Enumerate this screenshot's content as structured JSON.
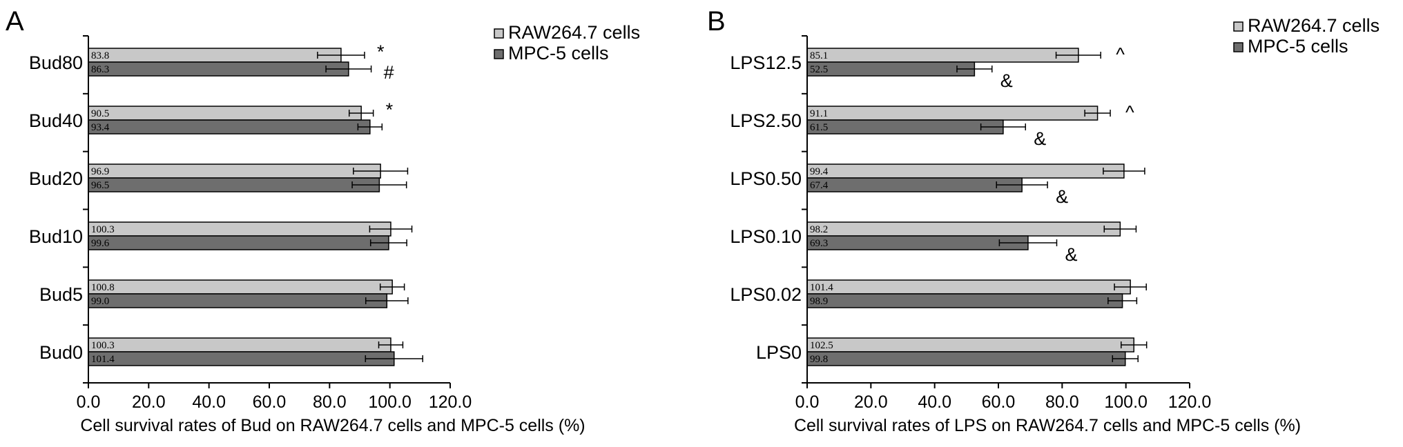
{
  "colors": {
    "raw": "#c8c8c8",
    "mpc": "#6e6e6e"
  },
  "chart_data": [
    {
      "type": "bar",
      "orientation": "horizontal",
      "panel_label": "A",
      "xlabel": "Cell survival rates of Bud on RAW264.7 cells and MPC-5 cells (%)",
      "ylabel": "",
      "xlim": [
        0,
        120
      ],
      "x_ticks": [
        "0.0",
        "20.0",
        "40.0",
        "60.0",
        "80.0",
        "100.0",
        "120.0"
      ],
      "legend_position": "top-right",
      "categories": [
        "Bud80",
        "Bud40",
        "Bud20",
        "Bud10",
        "Bud5",
        "Bud0"
      ],
      "series": [
        {
          "name": "RAW264.7 cells",
          "values": [
            83.8,
            90.5,
            96.9,
            100.3,
            100.8,
            100.3
          ],
          "value_labels": [
            "83.8",
            "90.5",
            "96.9",
            "100.3",
            "100.8",
            "100.3"
          ],
          "errors": [
            7.8,
            4.0,
            9.0,
            7.0,
            4.0,
            4.0
          ],
          "markers": [
            "*",
            "*",
            "",
            "",
            "",
            ""
          ]
        },
        {
          "name": "MPC-5 cells",
          "values": [
            86.3,
            93.4,
            96.5,
            99.6,
            99.0,
            101.4
          ],
          "value_labels": [
            "86.3",
            "93.4",
            "96.5",
            "99.6",
            "99.0",
            "101.4"
          ],
          "errors": [
            7.5,
            4.0,
            9.0,
            6.0,
            7.0,
            9.5
          ],
          "markers": [
            "#",
            "",
            "",
            "",
            "",
            ""
          ]
        }
      ]
    },
    {
      "type": "bar",
      "orientation": "horizontal",
      "panel_label": "B",
      "xlabel": "Cell survival rates of LPS on RAW264.7 cells and MPC-5 cells (%)",
      "ylabel": "",
      "xlim": [
        0,
        120
      ],
      "x_ticks": [
        "0.0",
        "20.0",
        "40.0",
        "60.0",
        "80.0",
        "100.0",
        "120.0"
      ],
      "legend_position": "top-right",
      "categories": [
        "LPS12.5",
        "LPS2.50",
        "LPS0.50",
        "LPS0.10",
        "LPS0.02",
        "LPS0"
      ],
      "series": [
        {
          "name": "RAW264.7 cells",
          "values": [
            85.1,
            91.1,
            99.4,
            98.2,
            101.4,
            102.5
          ],
          "value_labels": [
            "85.1",
            "91.1",
            "99.4",
            "98.2",
            "101.4",
            "102.5"
          ],
          "errors": [
            7.0,
            4.0,
            6.5,
            5.0,
            5.0,
            4.0
          ],
          "markers": [
            "^",
            "^",
            "",
            "",
            "",
            ""
          ]
        },
        {
          "name": "MPC-5 cells",
          "values": [
            52.5,
            61.5,
            67.4,
            69.3,
            98.9,
            99.8
          ],
          "value_labels": [
            "52.5",
            "61.5",
            "67.4",
            "69.3",
            "98.9",
            "99.8"
          ],
          "errors": [
            5.5,
            7.0,
            8.0,
            9.0,
            4.5,
            4.0
          ],
          "markers": [
            "&",
            "&",
            "&",
            "&",
            "",
            ""
          ]
        }
      ]
    }
  ]
}
